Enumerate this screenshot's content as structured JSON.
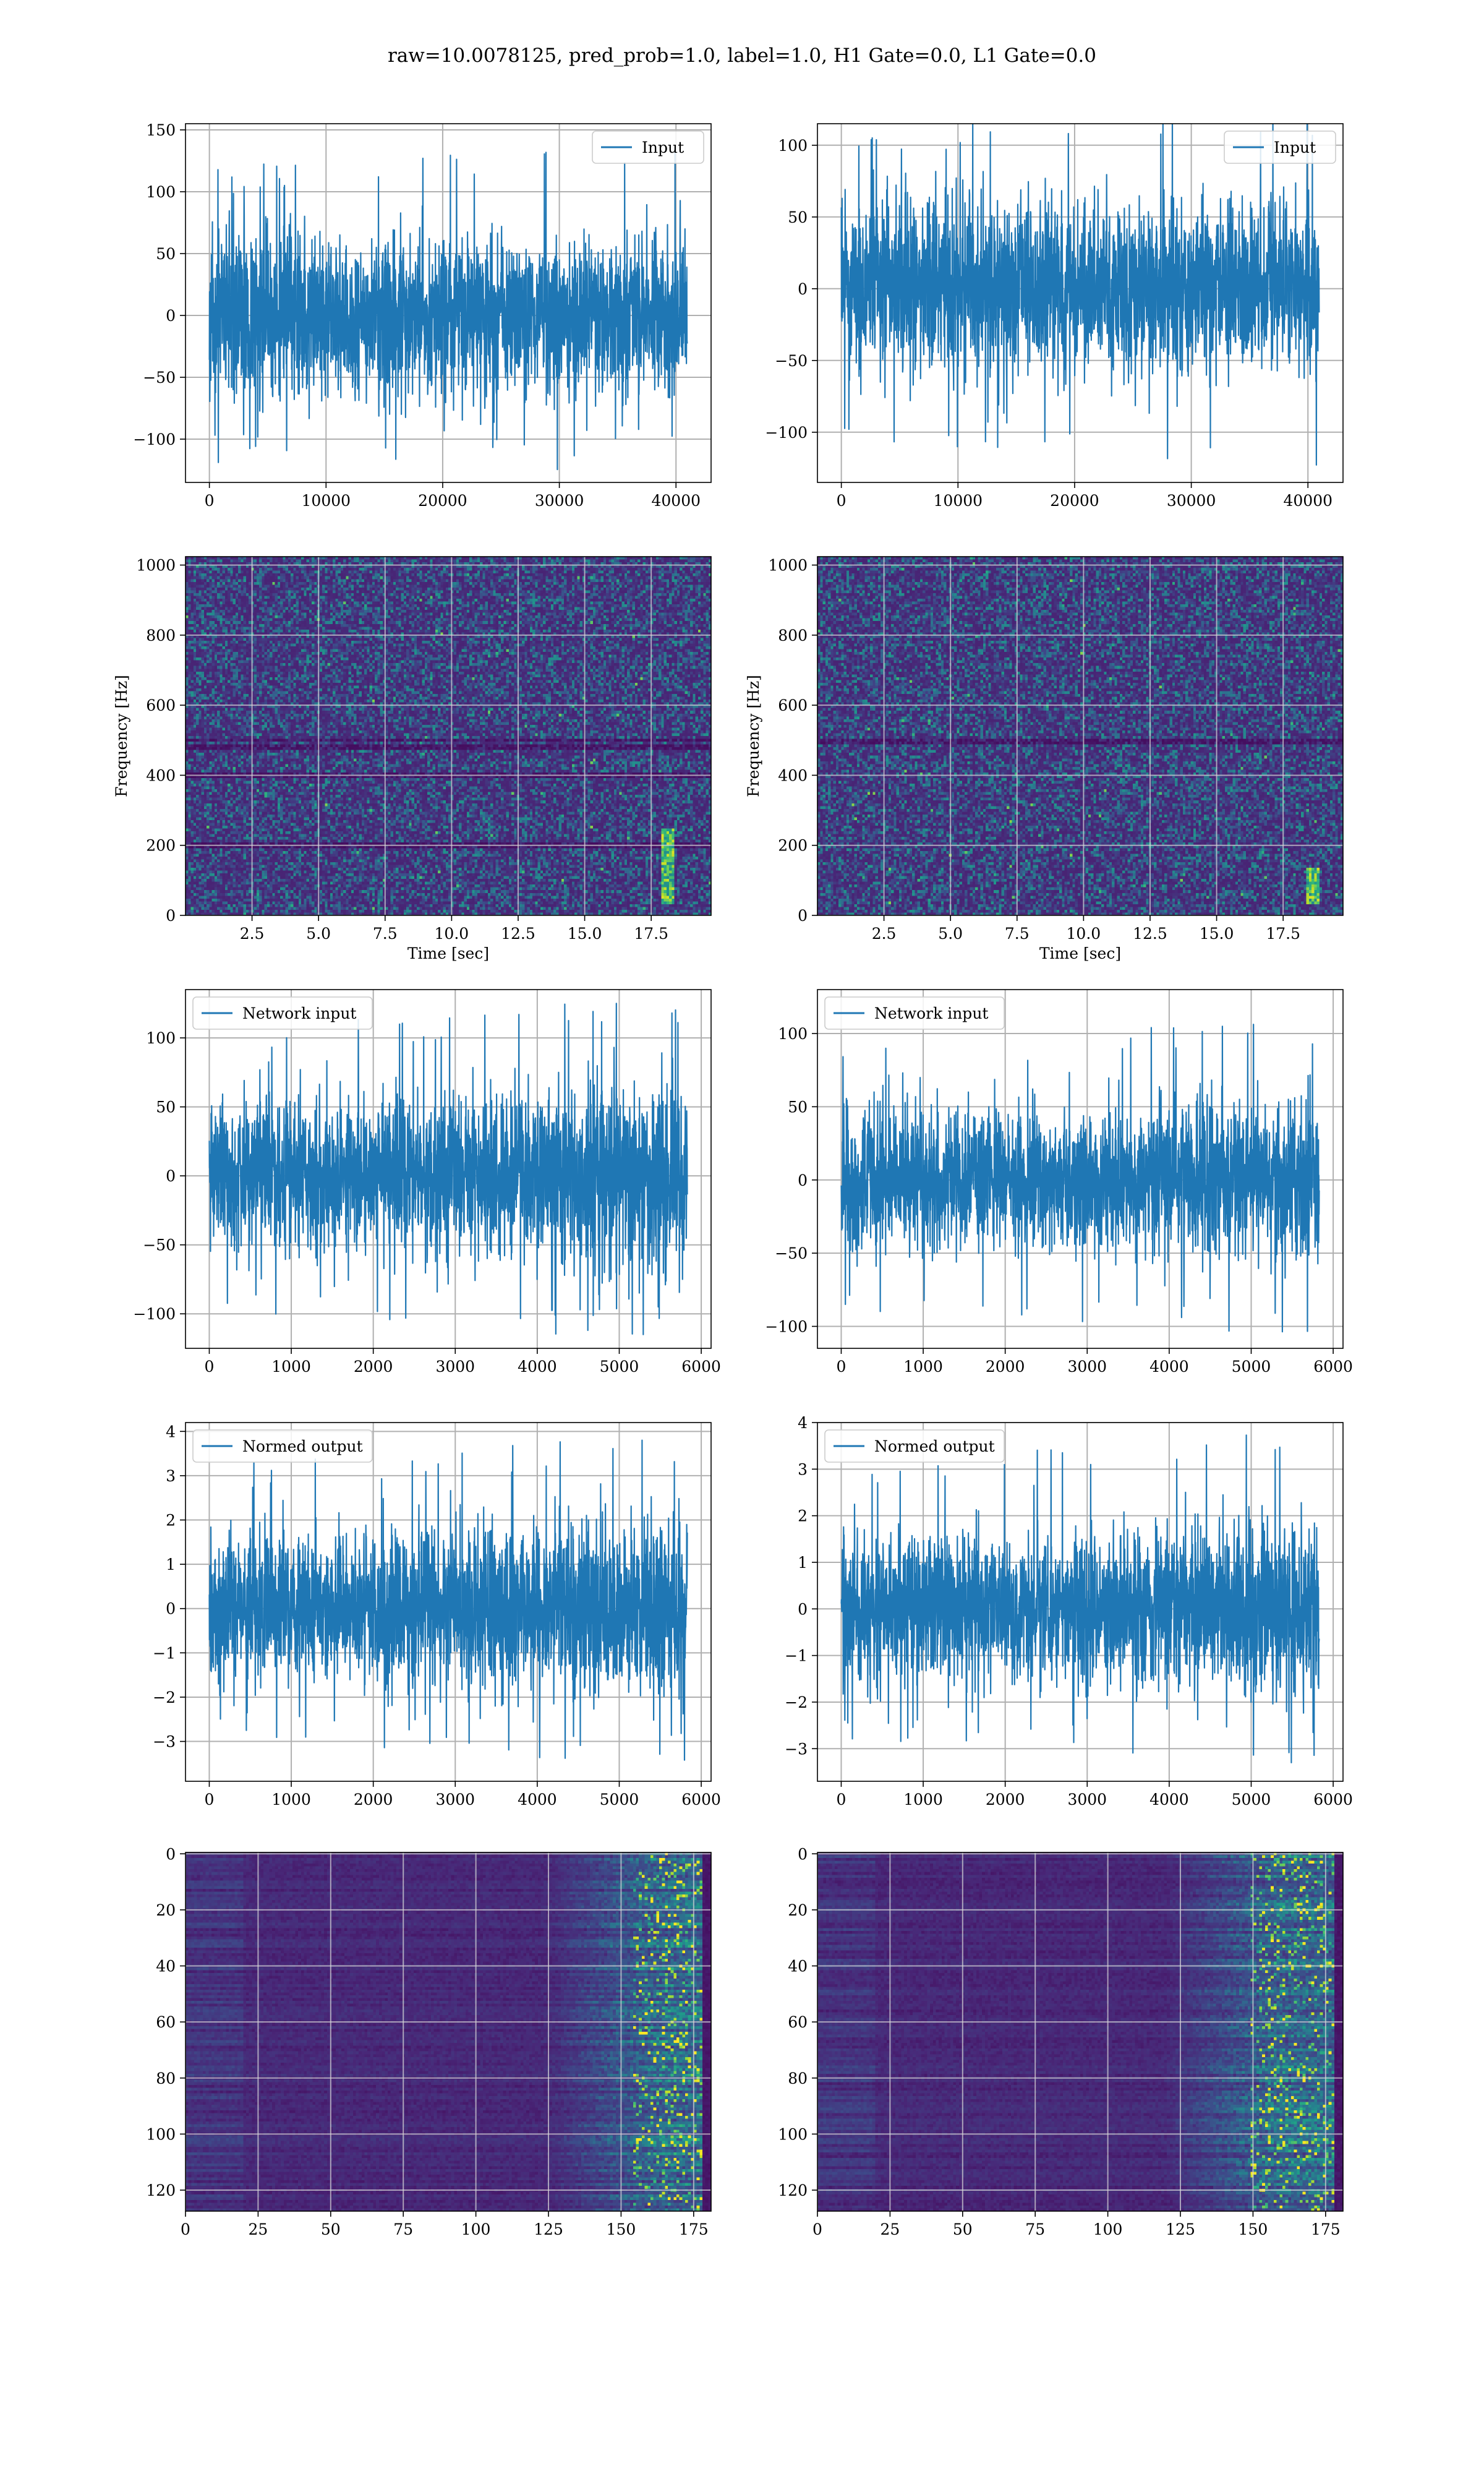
{
  "figure": {
    "suptitle": "raw=10.0078125, pred_prob=1.0, label=1.0, H1 Gate=0.0, L1 Gate=0.0"
  },
  "colors": {
    "line": "#1f77b4",
    "grid": "#b0b0b0",
    "image_grid": "#d8d8d8",
    "viridis": [
      "#440154",
      "#482878",
      "#3e4989",
      "#31688e",
      "#26828e",
      "#1f9e89",
      "#35b779",
      "#6ece58",
      "#b5de2b",
      "#fde725"
    ]
  },
  "chart_data": [
    {
      "id": "input-h1",
      "type": "line",
      "row": 0,
      "col": 0,
      "legend": "Input",
      "legend_loc": "upper-right",
      "seed": 11,
      "xlim": [
        -2048,
        43008
      ],
      "ylim": [
        -135,
        155
      ],
      "xticks": [
        0,
        10000,
        20000,
        30000,
        40000
      ],
      "yticks": [
        -100,
        -50,
        0,
        50,
        100,
        150
      ],
      "signal": {
        "x_start": 0,
        "x_end": 40960,
        "core": 75,
        "peak": 142,
        "trough": -130,
        "grow": 0
      }
    },
    {
      "id": "input-l1",
      "type": "line",
      "row": 0,
      "col": 1,
      "legend": "Input",
      "legend_loc": "upper-right",
      "seed": 23,
      "xlim": [
        -2048,
        43008
      ],
      "ylim": [
        -135,
        115
      ],
      "xticks": [
        0,
        10000,
        20000,
        30000,
        40000
      ],
      "yticks": [
        -100,
        -50,
        0,
        50,
        100
      ],
      "signal": {
        "x_start": 0,
        "x_end": 40960,
        "core": 68,
        "peak": 130,
        "trough": -125,
        "grow": 0
      }
    },
    {
      "id": "spectrogram-h1",
      "type": "heatmap",
      "row": 1,
      "col": 0,
      "seed": 31,
      "xlabel": "Time [sec]",
      "ylabel": "Frequency [Hz]",
      "xlim": [
        0,
        19.75
      ],
      "ylim": [
        0,
        1024
      ],
      "xticks": [
        2.5,
        5.0,
        7.5,
        10.0,
        12.5,
        15.0,
        17.5
      ],
      "xtick_labels": [
        "2.5",
        "5.0",
        "7.5",
        "10.0",
        "12.5",
        "15.0",
        "17.5"
      ],
      "yticks": [
        0,
        200,
        400,
        600,
        800,
        1000
      ],
      "dark_bands_hz": [
        200,
        400,
        480,
        500
      ],
      "bright_feature": {
        "time_sec": 18.1,
        "freq_range_hz": [
          30,
          250
        ]
      }
    },
    {
      "id": "spectrogram-l1",
      "type": "heatmap",
      "row": 1,
      "col": 1,
      "seed": 47,
      "xlabel": "Time [sec]",
      "ylabel": "Frequency [Hz]",
      "xlim": [
        0,
        19.75
      ],
      "ylim": [
        0,
        1024
      ],
      "xticks": [
        2.5,
        5.0,
        7.5,
        10.0,
        12.5,
        15.0,
        17.5
      ],
      "xtick_labels": [
        "2.5",
        "5.0",
        "7.5",
        "10.0",
        "12.5",
        "15.0",
        "17.5"
      ],
      "yticks": [
        0,
        200,
        400,
        600,
        800,
        1000
      ],
      "dark_bands_hz": [
        490,
        500
      ],
      "bright_feature": {
        "time_sec": 18.6,
        "freq_range_hz": [
          30,
          140
        ]
      }
    },
    {
      "id": "network-input-h1",
      "type": "line",
      "row": 2,
      "col": 0,
      "legend": "Network input",
      "legend_loc": "upper-left",
      "seed": 53,
      "xlim": [
        -290,
        6120
      ],
      "ylim": [
        -125,
        135
      ],
      "xticks": [
        0,
        1000,
        2000,
        3000,
        4000,
        5000,
        6000
      ],
      "yticks": [
        -100,
        -50,
        0,
        50,
        100
      ],
      "signal": {
        "x_start": 0,
        "x_end": 5830,
        "core": 60,
        "peak": 125,
        "trough": -115,
        "grow": 0.35
      }
    },
    {
      "id": "network-input-l1",
      "type": "line",
      "row": 2,
      "col": 1,
      "legend": "Network input",
      "legend_loc": "upper-left",
      "seed": 67,
      "xlim": [
        -290,
        6120
      ],
      "ylim": [
        -115,
        130
      ],
      "xticks": [
        0,
        1000,
        2000,
        3000,
        4000,
        5000,
        6000
      ],
      "yticks": [
        -100,
        -50,
        0,
        50,
        100
      ],
      "signal": {
        "x_start": 0,
        "x_end": 5830,
        "core": 52,
        "peak": 108,
        "trough": -105,
        "grow": 0.2
      }
    },
    {
      "id": "normed-output-h1",
      "type": "line",
      "row": 3,
      "col": 0,
      "legend": "Normed output",
      "legend_loc": "upper-left",
      "seed": 71,
      "xlim": [
        -290,
        6120
      ],
      "ylim": [
        -3.9,
        4.2
      ],
      "xticks": [
        0,
        1000,
        2000,
        3000,
        4000,
        5000,
        6000
      ],
      "yticks": [
        -3,
        -2,
        -1,
        0,
        1,
        2,
        3,
        4
      ],
      "signal": {
        "x_start": 0,
        "x_end": 5830,
        "core": 1.9,
        "peak": 3.8,
        "trough": -3.5,
        "grow": 0.35
      }
    },
    {
      "id": "normed-output-l1",
      "type": "line",
      "row": 3,
      "col": 1,
      "legend": "Normed output",
      "legend_loc": "upper-left",
      "seed": 89,
      "xlim": [
        -290,
        6120
      ],
      "ylim": [
        -3.7,
        4.0
      ],
      "xticks": [
        0,
        1000,
        2000,
        3000,
        4000,
        5000,
        6000
      ],
      "yticks": [
        -3,
        -2,
        -1,
        0,
        1,
        2,
        3,
        4
      ],
      "signal": {
        "x_start": 0,
        "x_end": 5830,
        "core": 1.8,
        "peak": 3.8,
        "trough": -3.3,
        "grow": 0.2
      }
    },
    {
      "id": "feature-map-h1",
      "type": "heatmap",
      "row": 4,
      "col": 0,
      "seed": 97,
      "xlim": [
        0,
        181
      ],
      "ylim": [
        127.5,
        -0.5
      ],
      "xticks": [
        0,
        25,
        50,
        75,
        100,
        125,
        150,
        175
      ],
      "yticks": [
        0,
        20,
        40,
        60,
        80,
        100,
        120
      ],
      "active_columns": [
        155,
        178
      ]
    },
    {
      "id": "feature-map-l1",
      "type": "heatmap",
      "row": 4,
      "col": 1,
      "seed": 103,
      "xlim": [
        0,
        181
      ],
      "ylim": [
        127.5,
        -0.5
      ],
      "xticks": [
        0,
        25,
        50,
        75,
        100,
        125,
        150,
        175
      ],
      "yticks": [
        0,
        20,
        40,
        60,
        80,
        100,
        120
      ],
      "active_columns": [
        150,
        178
      ]
    }
  ]
}
